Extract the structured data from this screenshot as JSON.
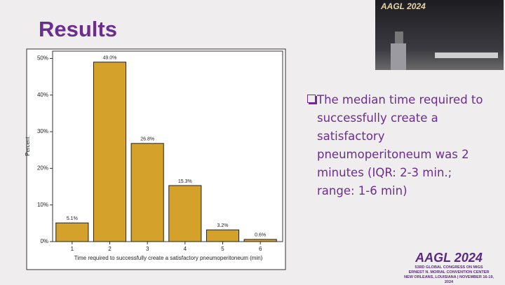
{
  "slide_title": "Results",
  "chart_data": {
    "type": "bar",
    "x_label": "Time required to successfully create a satisfactory pneumoperitoneum (min)",
    "y_label": "Percent",
    "categories": [
      "1",
      "2",
      "3",
      "4",
      "5",
      "6"
    ],
    "values": [
      5.1,
      49.0,
      26.8,
      15.3,
      3.2,
      0.6
    ],
    "value_labels": [
      "5.1%",
      "49.0%",
      "26.8%",
      "15.3%",
      "3.2%",
      "0.6%"
    ],
    "color": "#d4a22a",
    "ylim": [
      0,
      52
    ],
    "yticks": [
      {
        "value": 0,
        "label": "0%"
      },
      {
        "value": 10,
        "label": "10%"
      },
      {
        "value": 20,
        "label": "20%"
      },
      {
        "value": 30,
        "label": "30%"
      },
      {
        "value": 40,
        "label": "40%"
      },
      {
        "value": 50,
        "label": "50%"
      }
    ]
  },
  "bullet": "The median time required to successfully create a satisfactory pneumoperitoneum was 2 minutes (IQR: 2-3 min.; range: 1-6 min)",
  "video": {
    "logo": "AAGL 2024"
  },
  "footer": {
    "logo": "AAGL 2024",
    "line1": "53RD GLOBAL CONGRESS ON MIGS",
    "line2": "ERNEST N. MORIAL CONVENTION CENTER",
    "line3": "NEW ORLEANS, LOUISIANA | NOVEMBER 16-19, 2024"
  }
}
